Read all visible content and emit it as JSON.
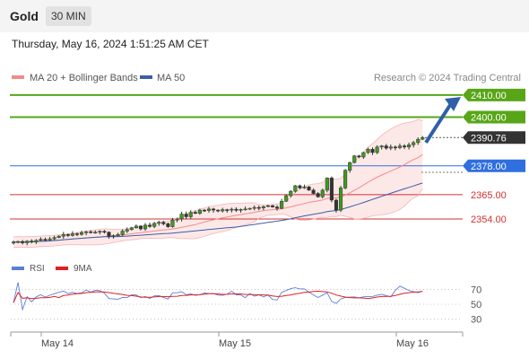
{
  "header": {
    "symbol": "Gold",
    "timeframe": "30 MIN"
  },
  "datetime": "Thursday, May 16, 2024 1:51:25 AM CET",
  "legend": {
    "ma20": {
      "label": "MA 20 + Bollinger Bands",
      "color": "#f28b8b"
    },
    "ma50": {
      "label": "MA 50",
      "color": "#3b5ea8"
    },
    "credit": "Research © 2024 Trading Central"
  },
  "rsi_legend": {
    "rsi": {
      "label": "RSI",
      "color": "#5b7fd6"
    },
    "ma9": {
      "label": "9MA",
      "color": "#e02020"
    }
  },
  "chart_data": {
    "type": "candlestick",
    "y_range": [
      2341,
      2414
    ],
    "x_labels": [
      "May 14",
      "May 15",
      "May 16"
    ],
    "levels": [
      {
        "value": 2410.0,
        "label": "2410.00",
        "color": "#58a618",
        "style": "resistance"
      },
      {
        "value": 2400.0,
        "label": "2400.00",
        "color": "#58a618",
        "style": "resistance"
      },
      {
        "value": 2390.76,
        "label": "2390.76",
        "color": "#333333",
        "style": "last"
      },
      {
        "value": 2378.0,
        "label": "2378.00",
        "color": "#2f6fe0",
        "style": "pivot"
      },
      {
        "value": 2365.0,
        "label": "2365.00",
        "color": "#d43030",
        "style": "support"
      },
      {
        "value": 2354.0,
        "label": "2354.00",
        "color": "#d43030",
        "style": "support"
      }
    ],
    "closes": [
      2343.5,
      2343.8,
      2343.2,
      2344.0,
      2343.6,
      2344.3,
      2344.8,
      2344.5,
      2345.0,
      2345.6,
      2346.2,
      2347.0,
      2346.5,
      2347.3,
      2347.0,
      2347.8,
      2348.2,
      2347.9,
      2348.0,
      2348.4,
      2348.0,
      2346.2,
      2346.5,
      2347.0,
      2348.5,
      2349.2,
      2350.0,
      2350.8,
      2349.5,
      2351.2,
      2350.6,
      2352.0,
      2352.5,
      2351.8,
      2350.5,
      2353.5,
      2354.0,
      2356.2,
      2355.0,
      2357.0,
      2356.5,
      2358.0,
      2357.8,
      2358.5,
      2358.0,
      2357.6,
      2358.2,
      2358.0,
      2358.4,
      2357.9,
      2358.3,
      2358.5,
      2358.8,
      2359.2,
      2359.0,
      2359.6,
      2360.0,
      2359.4,
      2358.8,
      2362.0,
      2364.5,
      2366.5,
      2369.0,
      2368.0,
      2368.5,
      2367.0,
      2365.5,
      2364.0,
      2367.0,
      2372.5,
      2362.5,
      2358.0,
      2368.0,
      2376.0,
      2379.5,
      2382.5,
      2382.0,
      2384.0,
      2385.5,
      2384.0,
      2386.5,
      2387.0,
      2386.0,
      2386.5,
      2386.2,
      2387.0,
      2386.5,
      2387.5,
      2388.5,
      2390.0,
      2390.76
    ],
    "rsi": {
      "range": [
        15,
        85
      ],
      "ticks": [
        70,
        50,
        30
      ],
      "rsi_values": [],
      "ma9_values": []
    }
  }
}
